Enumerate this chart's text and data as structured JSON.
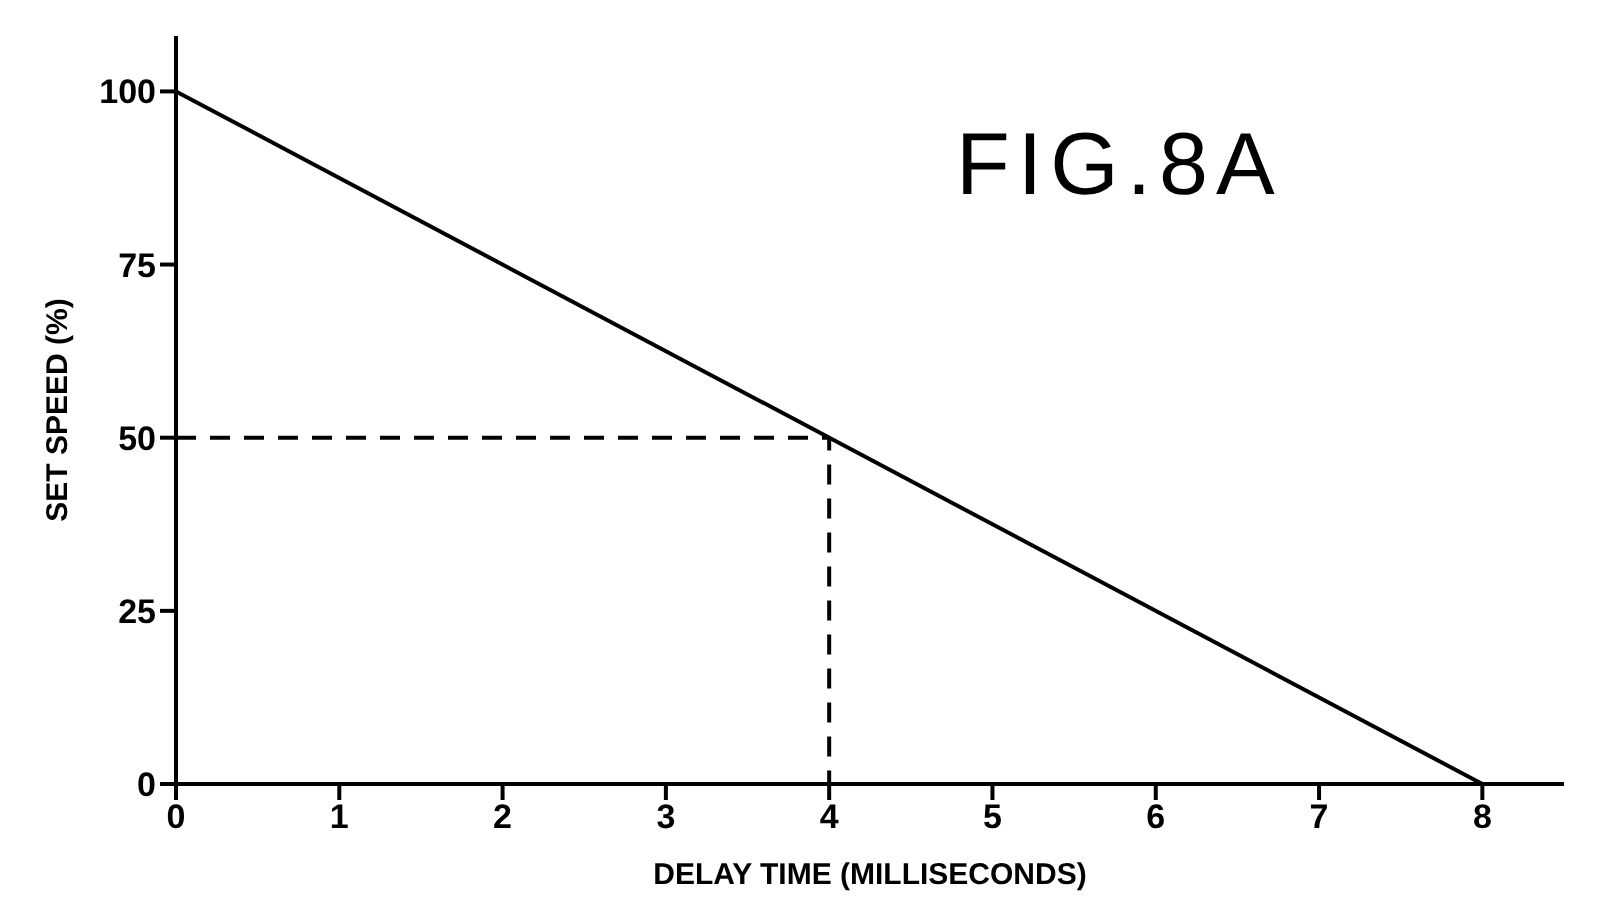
{
  "chart_data": {
    "type": "line",
    "xlabel": "DELAY TIME (MILLISECONDS)",
    "ylabel": "SET SPEED (%)",
    "annotations": [
      "FIG.8A"
    ],
    "xlim": [
      0,
      8.5
    ],
    "xticks": [
      0,
      1,
      2,
      3,
      4,
      5,
      6,
      7,
      8
    ],
    "ylim": [
      0,
      108
    ],
    "yticks": [
      0,
      25,
      50,
      75,
      100
    ],
    "grid": false,
    "legend": false,
    "series": [
      {
        "color": "#000000",
        "line_style": "solid",
        "x": [
          0,
          8
        ],
        "values": [
          100,
          0
        ]
      },
      {
        "color": "#000000",
        "line_style": "dashed",
        "x": [
          0,
          4,
          4
        ],
        "values": [
          50,
          50,
          0
        ]
      }
    ]
  }
}
